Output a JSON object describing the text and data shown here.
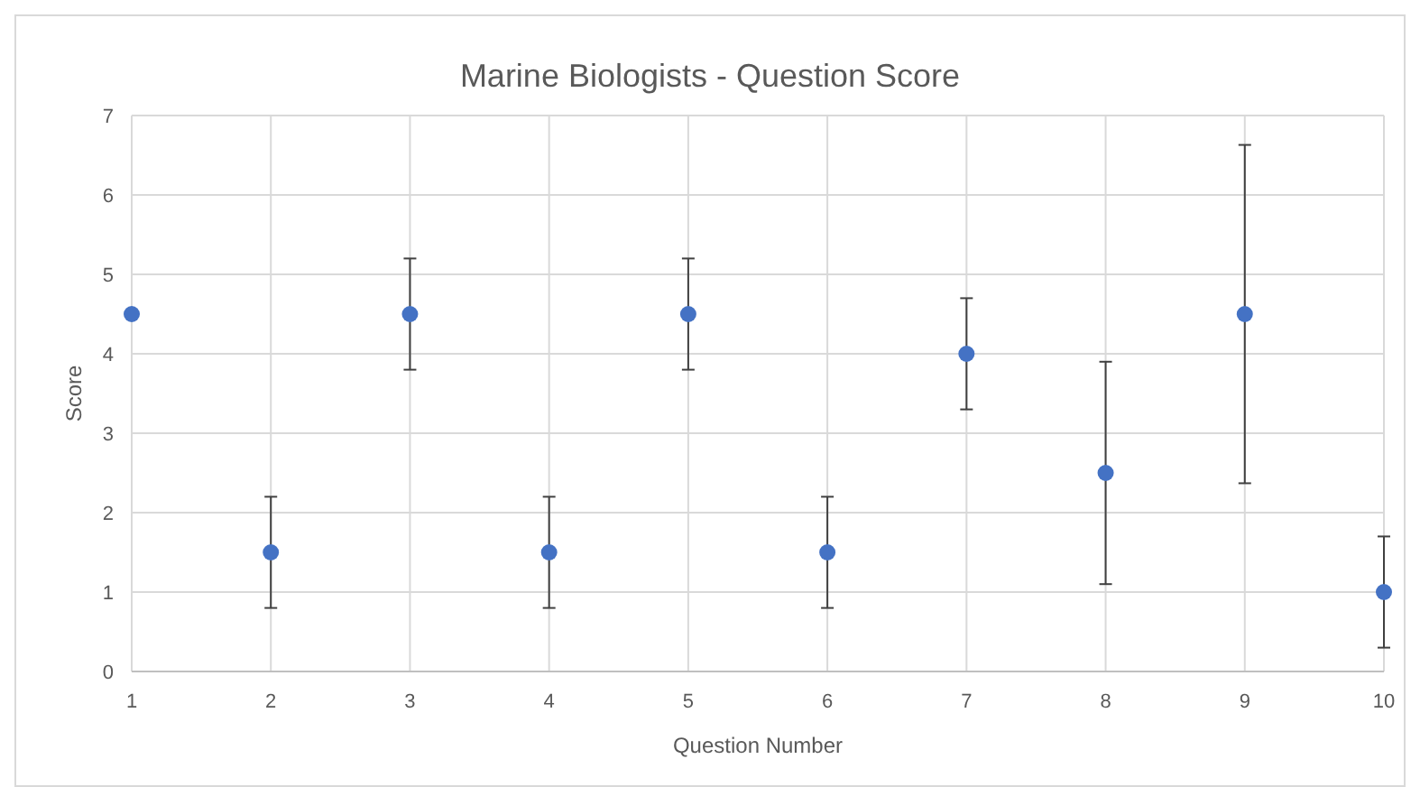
{
  "chart_data": {
    "type": "scatter",
    "title": "Marine Biologists - Question Score",
    "xlabel": "Question Number",
    "ylabel": "Score",
    "x": [
      1,
      2,
      3,
      4,
      5,
      6,
      7,
      8,
      9,
      10
    ],
    "series": [
      {
        "color": "#4472c4",
        "values": [
          4.5,
          1.5,
          4.5,
          1.5,
          4.5,
          1.5,
          4,
          2.5,
          4.5,
          1
        ],
        "errors": [
          null,
          0.7,
          0.7,
          0.7,
          0.7,
          0.7,
          0.7,
          1.4,
          [
            2.37,
            6.63
          ],
          0.7
        ]
      }
    ],
    "xlim": [
      1,
      10
    ],
    "xticks": [
      1,
      2,
      3,
      4,
      5,
      6,
      7,
      8,
      9,
      10
    ],
    "ylim": [
      0,
      7
    ],
    "yticks": [
      0,
      1,
      2,
      3,
      4,
      5,
      6,
      7
    ],
    "grid": true,
    "marker": "circle"
  }
}
